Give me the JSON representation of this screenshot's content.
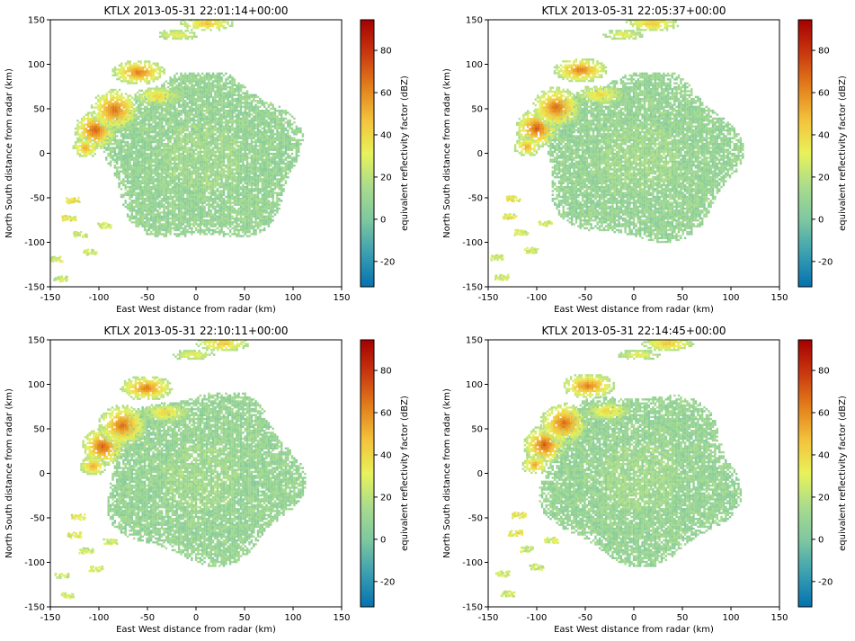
{
  "figure": {
    "panels": [
      {
        "title": "KTLX 2013-05-31 22:01:14+00:00",
        "frame": 0
      },
      {
        "title": "KTLX 2013-05-31 22:05:37+00:00",
        "frame": 1
      },
      {
        "title": "KTLX 2013-05-31 22:10:11+00:00",
        "frame": 2
      },
      {
        "title": "KTLX 2013-05-31 22:14:45+00:00",
        "frame": 3
      }
    ]
  },
  "chart_data": {
    "type": "heatmap",
    "xlabel": "East West distance from radar (km)",
    "ylabel": "North South distance from radar (km)",
    "xlim": [
      -150,
      150
    ],
    "ylim": [
      -150,
      150
    ],
    "xticks": [
      -150,
      -100,
      -50,
      0,
      50,
      100,
      150
    ],
    "yticks": [
      -150,
      -100,
      -50,
      0,
      50,
      100,
      150
    ],
    "grid": false,
    "colorbar": {
      "label": "equivalent reflectivity factor (dBZ)",
      "range": [
        -32,
        94.5
      ],
      "ticks": [
        -20,
        0,
        20,
        40,
        60,
        80
      ],
      "colors": [
        "#0571b0",
        "#3aa0b0",
        "#7ec7a0",
        "#a9dc8c",
        "#e8f25a",
        "#f3c23c",
        "#e27f1b",
        "#c9380f",
        "#a50000"
      ]
    }
  }
}
